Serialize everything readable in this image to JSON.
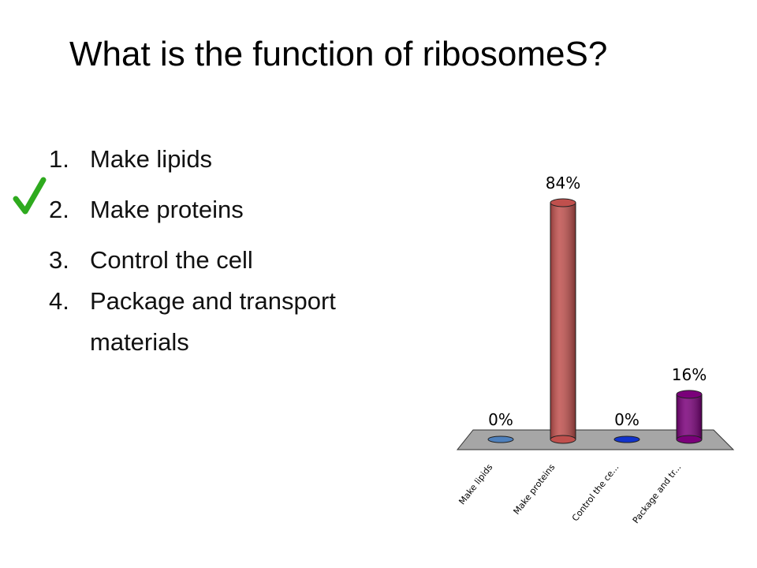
{
  "title": "What is the function of ribosomeS?",
  "options": [
    {
      "number": "1.",
      "text": "Make lipids"
    },
    {
      "number": "2.",
      "text": "Make proteins"
    },
    {
      "number": "3.",
      "text": "Control the cell"
    },
    {
      "number": "4.",
      "text": "Package and transport materials"
    }
  ],
  "correct_option": 1,
  "chart_data": {
    "type": "bar",
    "categories": [
      "Make lipids",
      "Make proteins",
      "Control the ce...",
      "Package and tr..."
    ],
    "values": [
      0,
      84,
      0,
      16
    ],
    "value_labels": [
      "0%",
      "84%",
      "0%",
      "16%"
    ],
    "colors": [
      "#4f81bd",
      "#c0504d",
      "#1133cc",
      "#7a007a"
    ]
  }
}
